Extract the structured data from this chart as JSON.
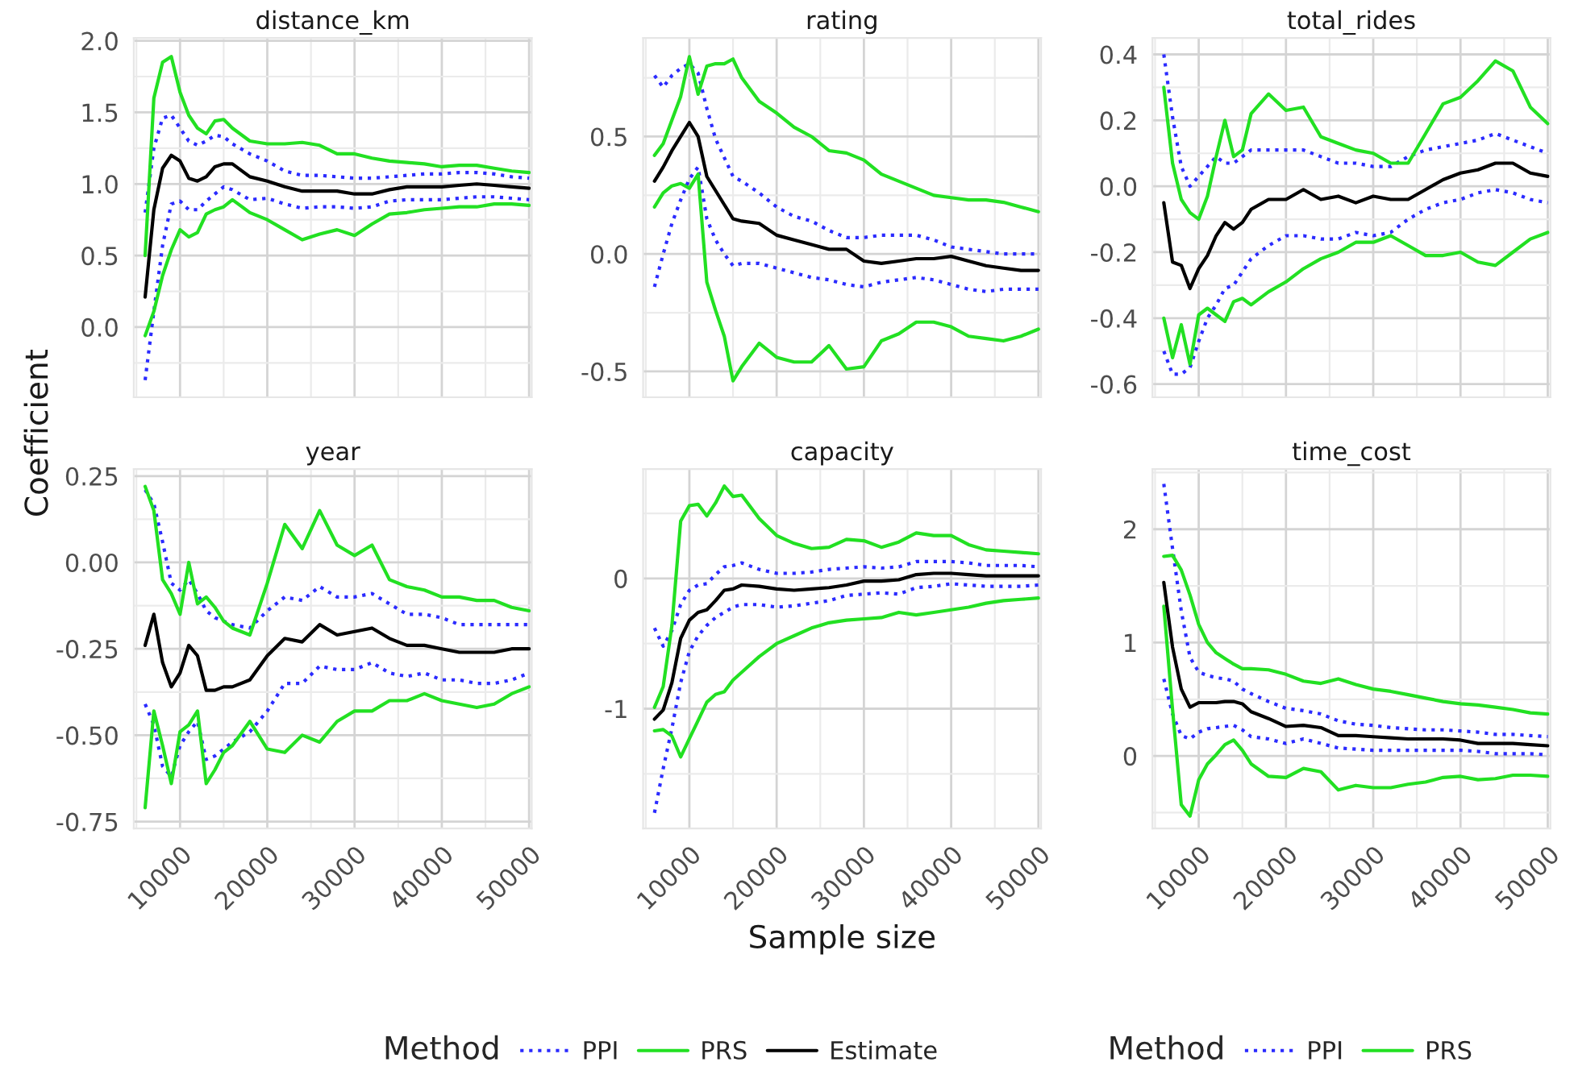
{
  "chart_data": [
    {
      "type": "line",
      "title": "distance_km",
      "ylabel": "Coefficient",
      "legend": "bottom",
      "legend_title": "Method",
      "x": [
        6000,
        7000,
        8000,
        9000,
        10000,
        11000,
        12000,
        13000,
        14000,
        15000,
        16000,
        18000,
        20000,
        22000,
        24000,
        26000,
        28000,
        30000,
        32000,
        34000,
        36000,
        38000,
        40000,
        42000,
        44000,
        46000,
        48000,
        50000
      ],
      "xlim": [
        4700,
        50300
      ],
      "xticks": [
        10000,
        20000,
        30000,
        40000,
        50000
      ],
      "ylim": [
        -0.49,
        2.02
      ],
      "yticks": [
        {
          "value": 0,
          "label": "0.0"
        },
        {
          "value": 0.5,
          "label": "0.5"
        },
        {
          "value": 1,
          "label": "1.0"
        },
        {
          "value": 1.5,
          "label": "1.5"
        },
        {
          "value": 2,
          "label": "2.0"
        }
      ],
      "tick_labels": "y",
      "grid": true,
      "series": [
        {
          "name": "PPI",
          "color": "#2b2bff",
          "line_style": "dotted",
          "values": [
            0.8,
            1.25,
            1.46,
            1.48,
            1.39,
            1.3,
            1.27,
            1.3,
            1.34,
            1.33,
            1.28,
            1.21,
            1.16,
            1.09,
            1.06,
            1.06,
            1.05,
            1.04,
            1.04,
            1.05,
            1.06,
            1.07,
            1.07,
            1.08,
            1.08,
            1.07,
            1.05,
            1.04
          ]
        },
        {
          "name": "PPI",
          "color": "#2b2bff",
          "line_style": "dotted",
          "values": [
            -0.37,
            0.11,
            0.57,
            0.86,
            0.88,
            0.82,
            0.82,
            0.88,
            0.93,
            0.98,
            0.96,
            0.89,
            0.9,
            0.86,
            0.83,
            0.84,
            0.84,
            0.83,
            0.84,
            0.88,
            0.89,
            0.89,
            0.89,
            0.9,
            0.91,
            0.91,
            0.9,
            0.89
          ]
        },
        {
          "name": "PRS",
          "color": "#22e022",
          "line_style": "solid",
          "values": [
            0.5,
            1.6,
            1.85,
            1.89,
            1.64,
            1.48,
            1.39,
            1.35,
            1.44,
            1.45,
            1.39,
            1.3,
            1.28,
            1.28,
            1.29,
            1.27,
            1.21,
            1.21,
            1.18,
            1.16,
            1.15,
            1.14,
            1.12,
            1.13,
            1.13,
            1.11,
            1.09,
            1.08
          ]
        },
        {
          "name": "PRS",
          "color": "#22e022",
          "line_style": "solid",
          "values": [
            -0.06,
            0.11,
            0.36,
            0.54,
            0.68,
            0.63,
            0.66,
            0.79,
            0.82,
            0.84,
            0.89,
            0.8,
            0.75,
            0.68,
            0.61,
            0.65,
            0.68,
            0.64,
            0.72,
            0.79,
            0.8,
            0.82,
            0.83,
            0.84,
            0.84,
            0.86,
            0.86,
            0.85
          ]
        },
        {
          "name": "Estimate",
          "color": "#000000",
          "line_style": "solid",
          "values": [
            0.21,
            0.82,
            1.11,
            1.2,
            1.16,
            1.04,
            1.02,
            1.05,
            1.12,
            1.14,
            1.14,
            1.05,
            1.02,
            0.98,
            0.95,
            0.95,
            0.95,
            0.93,
            0.93,
            0.96,
            0.98,
            0.98,
            0.98,
            0.99,
            1.0,
            0.99,
            0.98,
            0.97
          ]
        }
      ]
    },
    {
      "type": "line",
      "title": "rating",
      "x": [
        6000,
        7000,
        8000,
        9000,
        10000,
        11000,
        12000,
        13000,
        14000,
        15000,
        16000,
        18000,
        20000,
        22000,
        24000,
        26000,
        28000,
        30000,
        32000,
        34000,
        36000,
        38000,
        40000,
        42000,
        44000,
        46000,
        48000,
        50000
      ],
      "xlim": [
        4700,
        50300
      ],
      "xticks": [
        10000,
        20000,
        30000,
        40000,
        50000
      ],
      "ylim": [
        -0.61,
        0.92
      ],
      "yticks": [
        {
          "value": -0.5,
          "label": "-0.5"
        },
        {
          "value": 0,
          "label": "0.0"
        },
        {
          "value": 0.5,
          "label": "0.5"
        }
      ],
      "tick_labels": "y",
      "grid": true,
      "series": [
        {
          "name": "PPI",
          "color": "#2b2bff",
          "line_style": "dotted",
          "values": [
            0.76,
            0.71,
            0.76,
            0.79,
            0.81,
            0.77,
            0.62,
            0.49,
            0.41,
            0.33,
            0.31,
            0.26,
            0.2,
            0.16,
            0.14,
            0.1,
            0.07,
            0.07,
            0.08,
            0.08,
            0.08,
            0.06,
            0.03,
            0.02,
            0.01,
            0.0,
            0.0,
            0.0
          ]
        },
        {
          "name": "PPI",
          "color": "#2b2bff",
          "line_style": "dotted",
          "values": [
            -0.14,
            0.0,
            0.13,
            0.23,
            0.32,
            0.37,
            0.15,
            0.06,
            0.0,
            -0.05,
            -0.04,
            -0.04,
            -0.06,
            -0.08,
            -0.1,
            -0.11,
            -0.13,
            -0.14,
            -0.12,
            -0.11,
            -0.1,
            -0.11,
            -0.13,
            -0.15,
            -0.16,
            -0.15,
            -0.15,
            -0.15
          ]
        },
        {
          "name": "PRS",
          "color": "#22e022",
          "line_style": "solid",
          "values": [
            0.42,
            0.47,
            0.57,
            0.67,
            0.84,
            0.68,
            0.8,
            0.81,
            0.81,
            0.83,
            0.75,
            0.65,
            0.6,
            0.54,
            0.5,
            0.44,
            0.43,
            0.4,
            0.34,
            0.31,
            0.28,
            0.25,
            0.24,
            0.23,
            0.23,
            0.22,
            0.2,
            0.18
          ]
        },
        {
          "name": "PRS",
          "color": "#22e022",
          "line_style": "solid",
          "values": [
            0.2,
            0.26,
            0.29,
            0.3,
            0.28,
            0.34,
            -0.12,
            -0.24,
            -0.35,
            -0.54,
            -0.48,
            -0.38,
            -0.44,
            -0.46,
            -0.46,
            -0.39,
            -0.49,
            -0.48,
            -0.37,
            -0.34,
            -0.29,
            -0.29,
            -0.31,
            -0.35,
            -0.36,
            -0.37,
            -0.35,
            -0.32
          ]
        },
        {
          "name": "Estimate",
          "color": "#000000",
          "line_style": "solid",
          "values": [
            0.31,
            0.37,
            0.44,
            0.5,
            0.56,
            0.5,
            0.33,
            0.27,
            0.21,
            0.15,
            0.14,
            0.13,
            0.08,
            0.06,
            0.04,
            0.02,
            0.02,
            -0.03,
            -0.04,
            -0.03,
            -0.02,
            -0.02,
            -0.01,
            -0.03,
            -0.05,
            -0.06,
            -0.07,
            -0.07
          ]
        }
      ]
    },
    {
      "type": "line",
      "title": "total_rides",
      "x": [
        6000,
        7000,
        8000,
        9000,
        10000,
        11000,
        12000,
        13000,
        14000,
        15000,
        16000,
        18000,
        20000,
        22000,
        24000,
        26000,
        28000,
        30000,
        32000,
        34000,
        36000,
        38000,
        40000,
        42000,
        44000,
        46000,
        48000,
        50000
      ],
      "xlim": [
        4700,
        50300
      ],
      "xticks": [
        10000,
        20000,
        30000,
        40000,
        50000
      ],
      "ylim": [
        -0.64,
        0.45
      ],
      "yticks": [
        {
          "value": -0.6,
          "label": "-0.6"
        },
        {
          "value": -0.4,
          "label": "-0.4"
        },
        {
          "value": -0.2,
          "label": "-0.2"
        },
        {
          "value": 0,
          "label": "0.0"
        },
        {
          "value": 0.2,
          "label": "0.2"
        },
        {
          "value": 0.4,
          "label": "0.4"
        }
      ],
      "tick_labels": "y",
      "grid": true,
      "series": [
        {
          "name": "PPI",
          "color": "#2b2bff",
          "line_style": "dotted",
          "values": [
            0.4,
            0.21,
            0.06,
            0.0,
            0.03,
            0.06,
            0.09,
            0.07,
            0.07,
            0.09,
            0.11,
            0.11,
            0.11,
            0.11,
            0.09,
            0.07,
            0.07,
            0.06,
            0.06,
            0.09,
            0.11,
            0.12,
            0.13,
            0.14,
            0.16,
            0.14,
            0.12,
            0.1
          ]
        },
        {
          "name": "PPI",
          "color": "#2b2bff",
          "line_style": "dotted",
          "values": [
            -0.5,
            -0.57,
            -0.57,
            -0.55,
            -0.47,
            -0.4,
            -0.36,
            -0.31,
            -0.3,
            -0.26,
            -0.22,
            -0.18,
            -0.15,
            -0.15,
            -0.16,
            -0.16,
            -0.14,
            -0.15,
            -0.14,
            -0.1,
            -0.07,
            -0.05,
            -0.04,
            -0.02,
            -0.01,
            -0.02,
            -0.04,
            -0.05
          ]
        },
        {
          "name": "PRS",
          "color": "#22e022",
          "line_style": "solid",
          "values": [
            0.3,
            0.07,
            -0.04,
            -0.08,
            -0.1,
            -0.03,
            0.09,
            0.2,
            0.09,
            0.11,
            0.22,
            0.28,
            0.23,
            0.24,
            0.15,
            0.13,
            0.11,
            0.1,
            0.07,
            0.07,
            0.16,
            0.25,
            0.27,
            0.32,
            0.38,
            0.35,
            0.24,
            0.19
          ]
        },
        {
          "name": "PRS",
          "color": "#22e022",
          "line_style": "solid",
          "values": [
            -0.4,
            -0.52,
            -0.42,
            -0.54,
            -0.39,
            -0.37,
            -0.39,
            -0.41,
            -0.35,
            -0.34,
            -0.36,
            -0.32,
            -0.29,
            -0.25,
            -0.22,
            -0.2,
            -0.17,
            -0.17,
            -0.15,
            -0.18,
            -0.21,
            -0.21,
            -0.2,
            -0.23,
            -0.24,
            -0.2,
            -0.16,
            -0.14
          ]
        },
        {
          "name": "Estimate",
          "color": "#000000",
          "line_style": "solid",
          "values": [
            -0.05,
            -0.23,
            -0.24,
            -0.31,
            -0.25,
            -0.21,
            -0.15,
            -0.11,
            -0.13,
            -0.11,
            -0.07,
            -0.04,
            -0.04,
            -0.01,
            -0.04,
            -0.03,
            -0.05,
            -0.03,
            -0.04,
            -0.04,
            -0.01,
            0.02,
            0.04,
            0.05,
            0.07,
            0.07,
            0.04,
            0.03
          ]
        }
      ]
    },
    {
      "type": "line",
      "title": "year",
      "x": [
        6000,
        7000,
        8000,
        9000,
        10000,
        11000,
        12000,
        13000,
        14000,
        15000,
        16000,
        18000,
        20000,
        22000,
        24000,
        26000,
        28000,
        30000,
        32000,
        34000,
        36000,
        38000,
        40000,
        42000,
        44000,
        46000,
        48000,
        50000
      ],
      "xlim": [
        4700,
        50300
      ],
      "xticks": [
        10000,
        20000,
        30000,
        40000,
        50000
      ],
      "ylim": [
        -0.77,
        0.27
      ],
      "yticks": [
        {
          "value": -0.75,
          "label": "-0.75"
        },
        {
          "value": -0.5,
          "label": "-0.50"
        },
        {
          "value": -0.25,
          "label": "-0.25"
        },
        {
          "value": 0,
          "label": "0.00"
        },
        {
          "value": 0.25,
          "label": "0.25"
        }
      ],
      "grid": true,
      "series": [
        {
          "name": "PPI",
          "color": "#2b2bff",
          "line_style": "dotted",
          "values": [
            0.21,
            0.17,
            0.06,
            -0.06,
            -0.08,
            -0.05,
            -0.09,
            -0.14,
            -0.16,
            -0.17,
            -0.18,
            -0.19,
            -0.14,
            -0.1,
            -0.11,
            -0.07,
            -0.1,
            -0.1,
            -0.09,
            -0.12,
            -0.15,
            -0.15,
            -0.16,
            -0.18,
            -0.18,
            -0.18,
            -0.18,
            -0.18
          ]
        },
        {
          "name": "PPI",
          "color": "#2b2bff",
          "line_style": "dotted",
          "values": [
            -0.41,
            -0.47,
            -0.59,
            -0.62,
            -0.53,
            -0.49,
            -0.46,
            -0.57,
            -0.56,
            -0.54,
            -0.52,
            -0.49,
            -0.43,
            -0.35,
            -0.35,
            -0.3,
            -0.31,
            -0.31,
            -0.29,
            -0.32,
            -0.33,
            -0.32,
            -0.34,
            -0.34,
            -0.35,
            -0.35,
            -0.34,
            -0.32
          ]
        },
        {
          "name": "PRS",
          "color": "#22e022",
          "line_style": "solid",
          "values": [
            0.22,
            0.15,
            -0.05,
            -0.09,
            -0.15,
            0.0,
            -0.12,
            -0.1,
            -0.13,
            -0.17,
            -0.19,
            -0.21,
            -0.06,
            0.11,
            0.04,
            0.15,
            0.05,
            0.02,
            0.05,
            -0.05,
            -0.07,
            -0.08,
            -0.1,
            -0.1,
            -0.11,
            -0.11,
            -0.13,
            -0.14
          ]
        },
        {
          "name": "PRS",
          "color": "#22e022",
          "line_style": "solid",
          "values": [
            -0.71,
            -0.43,
            -0.53,
            -0.64,
            -0.49,
            -0.47,
            -0.43,
            -0.64,
            -0.6,
            -0.55,
            -0.53,
            -0.46,
            -0.54,
            -0.55,
            -0.5,
            -0.52,
            -0.46,
            -0.43,
            -0.43,
            -0.4,
            -0.4,
            -0.38,
            -0.4,
            -0.41,
            -0.42,
            -0.41,
            -0.38,
            -0.36
          ]
        },
        {
          "name": "Estimate",
          "color": "#000000",
          "line_style": "solid",
          "values": [
            -0.24,
            -0.15,
            -0.29,
            -0.36,
            -0.32,
            -0.24,
            -0.27,
            -0.37,
            -0.37,
            -0.36,
            -0.36,
            -0.34,
            -0.27,
            -0.22,
            -0.23,
            -0.18,
            -0.21,
            -0.2,
            -0.19,
            -0.22,
            -0.24,
            -0.24,
            -0.25,
            -0.26,
            -0.26,
            -0.26,
            -0.25,
            -0.25
          ]
        }
      ]
    },
    {
      "type": "line",
      "title": "capacity",
      "xlabel": "Sample size",
      "x": [
        6000,
        7000,
        8000,
        9000,
        10000,
        11000,
        12000,
        13000,
        14000,
        15000,
        16000,
        18000,
        20000,
        22000,
        24000,
        26000,
        28000,
        30000,
        32000,
        34000,
        36000,
        38000,
        40000,
        42000,
        44000,
        46000,
        48000,
        50000
      ],
      "xlim": [
        4700,
        50300
      ],
      "xticks": [
        10000,
        20000,
        30000,
        40000,
        50000
      ],
      "ylim": [
        -1.92,
        0.84
      ],
      "yticks": [
        -1,
        0
      ],
      "grid": true,
      "series": [
        {
          "name": "PPI",
          "color": "#2b2bff",
          "line_style": "dotted",
          "values": [
            -0.38,
            -0.52,
            -0.4,
            -0.2,
            -0.09,
            -0.05,
            -0.04,
            0.03,
            0.09,
            0.1,
            0.12,
            0.07,
            0.04,
            0.04,
            0.05,
            0.07,
            0.08,
            0.09,
            0.08,
            0.09,
            0.13,
            0.13,
            0.13,
            0.12,
            0.1,
            0.1,
            0.1,
            0.09
          ]
        },
        {
          "name": "PPI",
          "color": "#2b2bff",
          "line_style": "dotted",
          "values": [
            -1.8,
            -1.46,
            -1.15,
            -0.8,
            -0.56,
            -0.44,
            -0.36,
            -0.3,
            -0.26,
            -0.22,
            -0.2,
            -0.2,
            -0.22,
            -0.21,
            -0.19,
            -0.17,
            -0.13,
            -0.12,
            -0.11,
            -0.12,
            -0.07,
            -0.06,
            -0.04,
            -0.05,
            -0.06,
            -0.06,
            -0.06,
            -0.05
          ]
        },
        {
          "name": "PRS",
          "color": "#22e022",
          "line_style": "solid",
          "values": [
            -0.99,
            -0.83,
            -0.36,
            0.44,
            0.56,
            0.57,
            0.48,
            0.58,
            0.71,
            0.63,
            0.64,
            0.46,
            0.33,
            0.27,
            0.23,
            0.24,
            0.3,
            0.29,
            0.24,
            0.28,
            0.35,
            0.33,
            0.33,
            0.26,
            0.22,
            0.21,
            0.2,
            0.19
          ]
        },
        {
          "name": "PRS",
          "color": "#22e022",
          "line_style": "solid",
          "values": [
            -1.17,
            -1.16,
            -1.21,
            -1.37,
            -1.23,
            -1.09,
            -0.95,
            -0.89,
            -0.87,
            -0.78,
            -0.72,
            -0.6,
            -0.5,
            -0.44,
            -0.38,
            -0.34,
            -0.32,
            -0.31,
            -0.3,
            -0.26,
            -0.28,
            -0.26,
            -0.24,
            -0.22,
            -0.19,
            -0.17,
            -0.16,
            -0.15
          ]
        },
        {
          "name": "Estimate",
          "color": "#000000",
          "line_style": "solid",
          "values": [
            -1.08,
            -1.01,
            -0.8,
            -0.46,
            -0.32,
            -0.26,
            -0.24,
            -0.17,
            -0.09,
            -0.08,
            -0.05,
            -0.06,
            -0.08,
            -0.09,
            -0.08,
            -0.07,
            -0.05,
            -0.02,
            -0.02,
            -0.01,
            0.03,
            0.04,
            0.04,
            0.03,
            0.02,
            0.02,
            0.02,
            0.02
          ]
        }
      ]
    },
    {
      "type": "line",
      "title": "time_cost",
      "x": [
        6000,
        7000,
        8000,
        9000,
        10000,
        11000,
        12000,
        13000,
        14000,
        15000,
        16000,
        18000,
        20000,
        22000,
        24000,
        26000,
        28000,
        30000,
        32000,
        34000,
        36000,
        38000,
        40000,
        42000,
        44000,
        46000,
        48000,
        50000
      ],
      "xlim": [
        4700,
        50300
      ],
      "xticks": [
        10000,
        20000,
        30000,
        40000,
        50000
      ],
      "ylim": [
        -0.64,
        2.53
      ],
      "yticks": [
        0,
        1,
        2
      ],
      "grid": true,
      "series": [
        {
          "name": "PPI",
          "color": "#2b2bff",
          "line_style": "dotted",
          "values": [
            2.4,
            1.83,
            1.28,
            0.87,
            0.74,
            0.71,
            0.69,
            0.68,
            0.66,
            0.59,
            0.55,
            0.48,
            0.42,
            0.4,
            0.37,
            0.31,
            0.28,
            0.27,
            0.25,
            0.24,
            0.23,
            0.23,
            0.22,
            0.21,
            0.19,
            0.19,
            0.18,
            0.17
          ]
        },
        {
          "name": "PPI",
          "color": "#2b2bff",
          "line_style": "dotted",
          "values": [
            0.68,
            0.37,
            0.18,
            0.15,
            0.21,
            0.24,
            0.25,
            0.26,
            0.27,
            0.23,
            0.17,
            0.15,
            0.11,
            0.15,
            0.11,
            0.07,
            0.06,
            0.05,
            0.05,
            0.05,
            0.05,
            0.05,
            0.05,
            0.04,
            0.02,
            0.02,
            0.02,
            0.01
          ]
        },
        {
          "name": "PRS",
          "color": "#22e022",
          "line_style": "solid",
          "values": [
            1.76,
            1.77,
            1.64,
            1.42,
            1.16,
            1.0,
            0.91,
            0.86,
            0.81,
            0.77,
            0.77,
            0.76,
            0.72,
            0.66,
            0.64,
            0.68,
            0.63,
            0.59,
            0.57,
            0.54,
            0.51,
            0.48,
            0.46,
            0.45,
            0.43,
            0.41,
            0.38,
            0.37
          ]
        },
        {
          "name": "PRS",
          "color": "#22e022",
          "line_style": "solid",
          "values": [
            1.32,
            0.41,
            -0.43,
            -0.53,
            -0.21,
            -0.07,
            0.01,
            0.1,
            0.14,
            0.05,
            -0.07,
            -0.18,
            -0.19,
            -0.11,
            -0.14,
            -0.3,
            -0.26,
            -0.28,
            -0.28,
            -0.25,
            -0.23,
            -0.19,
            -0.18,
            -0.21,
            -0.2,
            -0.17,
            -0.17,
            -0.18
          ]
        },
        {
          "name": "Estimate",
          "color": "#000000",
          "line_style": "solid",
          "values": [
            1.53,
            0.96,
            0.59,
            0.43,
            0.47,
            0.47,
            0.47,
            0.48,
            0.48,
            0.46,
            0.39,
            0.33,
            0.26,
            0.27,
            0.25,
            0.18,
            0.18,
            0.17,
            0.16,
            0.15,
            0.15,
            0.15,
            0.14,
            0.11,
            0.11,
            0.11,
            0.1,
            0.09
          ]
        }
      ]
    }
  ]
}
